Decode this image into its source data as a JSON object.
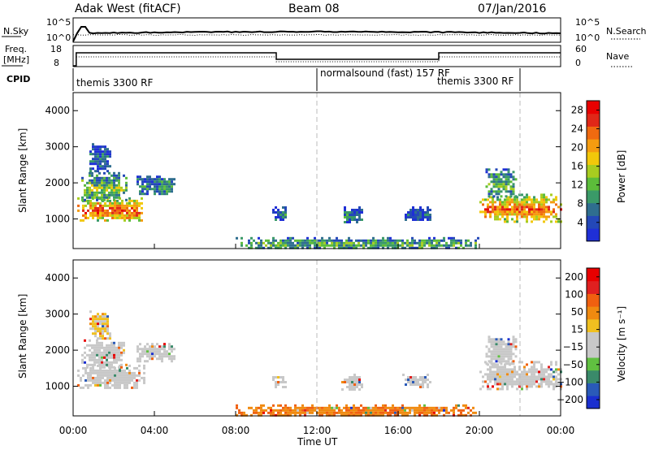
{
  "header": {
    "title": "Adak West (fitACF)",
    "beam": "Beam 08",
    "date": "07/Jan/2016"
  },
  "colors": {
    "power": [
      "#1f2fd6",
      "#2448b8",
      "#2f6e8f",
      "#3a9a68",
      "#5cbc3a",
      "#a8cc20",
      "#f2c80a",
      "#f59c10",
      "#f06a10",
      "#e02818",
      "#e80000"
    ],
    "velocity": [
      "#1a2fd0",
      "#2a5ab8",
      "#3a8a6a",
      "#60c040",
      "#c8c8c8",
      "#c8c8c8",
      "#f0c020",
      "#f08a10",
      "#f06010",
      "#e02020",
      "#e80000"
    ],
    "scatter_grey": "#c8c8c8",
    "dashed_line": "#bbbbbb"
  },
  "noise_panel": {
    "left_label": "N.Sky",
    "right_label": "N.Search",
    "left_ticks": [
      "10^5",
      "10^0"
    ],
    "right_ticks": [
      "10^5",
      "10^0"
    ]
  },
  "freq_panel": {
    "left_label_1": "Freq.",
    "left_label_2": "[MHz]",
    "right_label": "Nave",
    "left_ticks": [
      "18",
      "8"
    ],
    "right_ticks": [
      "60",
      "0"
    ]
  },
  "cpid_panel": {
    "label": "CPID",
    "segments": [
      {
        "name": "themis 3300 RF",
        "start_h": 0,
        "end_h": 12
      },
      {
        "name": "normalsound (fast) 157 RF",
        "start_h": 12,
        "end_h": 22
      },
      {
        "name": "themis 3300 RF",
        "start_h": 18,
        "end_h": 22
      }
    ]
  },
  "chart_data": [
    {
      "type": "heatmap",
      "name": "power",
      "ylabel": "Slant Range [km]",
      "xlim": [
        0,
        24
      ],
      "ylim": [
        180,
        4500
      ],
      "yticks": [
        "1000",
        "2000",
        "3000",
        "4000"
      ],
      "ytick_values": [
        1000,
        2000,
        3000,
        4000
      ],
      "colorbar": {
        "label": "Power [dB]",
        "ticks": [
          "4",
          "8",
          "12",
          "16",
          "20",
          "24",
          "28"
        ],
        "tick_values": [
          4,
          8,
          12,
          16,
          20,
          24,
          28
        ],
        "range": [
          0,
          30
        ]
      },
      "dashed_times_h": [
        12,
        22
      ],
      "regions": [
        {
          "t0": 0.2,
          "t1": 3.5,
          "r0": 950,
          "r1": 1600,
          "level": 0.85
        },
        {
          "t0": 0.4,
          "t1": 2.6,
          "r0": 1500,
          "r1": 2300,
          "level": 0.45
        },
        {
          "t0": 0.8,
          "t1": 1.8,
          "r0": 2300,
          "r1": 3100,
          "level": 0.2
        },
        {
          "t0": 3.0,
          "t1": 5.0,
          "r0": 1700,
          "r1": 2200,
          "level": 0.3
        },
        {
          "t0": 9.8,
          "t1": 10.5,
          "r0": 950,
          "r1": 1350,
          "level": 0.25
        },
        {
          "t0": 13.2,
          "t1": 14.2,
          "r0": 900,
          "r1": 1350,
          "level": 0.25
        },
        {
          "t0": 16.2,
          "t1": 17.6,
          "r0": 1000,
          "r1": 1350,
          "level": 0.2
        },
        {
          "t0": 8.0,
          "t1": 20.0,
          "r0": 180,
          "r1": 500,
          "level": 0.4
        },
        {
          "t0": 20.0,
          "t1": 24.0,
          "r0": 950,
          "r1": 1700,
          "level": 0.8
        },
        {
          "t0": 20.3,
          "t1": 21.8,
          "r0": 1600,
          "r1": 2400,
          "level": 0.4
        }
      ]
    },
    {
      "type": "heatmap",
      "name": "velocity",
      "ylabel": "Slant Range [km]",
      "xlabel": "Time UT",
      "xlim": [
        0,
        24
      ],
      "ylim": [
        180,
        4500
      ],
      "xticks": [
        "00:00",
        "04:00",
        "08:00",
        "12:00",
        "16:00",
        "20:00",
        "00:00"
      ],
      "xtick_values": [
        0,
        4,
        8,
        12,
        16,
        20,
        24
      ],
      "yticks": [
        "1000",
        "2000",
        "3000",
        "4000"
      ],
      "ytick_values": [
        1000,
        2000,
        3000,
        4000
      ],
      "colorbar": {
        "label": "Velocity [m s⁻¹]",
        "ticks": [
          "200",
          "100",
          "50",
          "15",
          "−15",
          "−50",
          "−100",
          "−200"
        ],
        "tick_values": [
          200,
          100,
          50,
          15,
          -15,
          -50,
          -100,
          -200
        ]
      },
      "dashed_times_h": [
        12,
        22
      ],
      "regions": [
        {
          "t0": 0.2,
          "t1": 3.5,
          "r0": 950,
          "r1": 1600,
          "level": 0.5
        },
        {
          "t0": 0.4,
          "t1": 2.6,
          "r0": 1500,
          "r1": 2300,
          "level": 0.5
        },
        {
          "t0": 0.8,
          "t1": 1.8,
          "r0": 2300,
          "r1": 3100,
          "level": 0.6
        },
        {
          "t0": 3.0,
          "t1": 5.0,
          "r0": 1700,
          "r1": 2200,
          "level": 0.5
        },
        {
          "t0": 9.8,
          "t1": 10.5,
          "r0": 950,
          "r1": 1350,
          "level": 0.5
        },
        {
          "t0": 13.2,
          "t1": 14.2,
          "r0": 900,
          "r1": 1350,
          "level": 0.5
        },
        {
          "t0": 16.2,
          "t1": 17.6,
          "r0": 1000,
          "r1": 1350,
          "level": 0.5
        },
        {
          "t0": 8.0,
          "t1": 20.0,
          "r0": 180,
          "r1": 500,
          "level": 0.72
        },
        {
          "t0": 20.0,
          "t1": 24.0,
          "r0": 950,
          "r1": 1700,
          "level": 0.5
        },
        {
          "t0": 20.3,
          "t1": 21.8,
          "r0": 1600,
          "r1": 2400,
          "level": 0.45
        }
      ]
    }
  ]
}
